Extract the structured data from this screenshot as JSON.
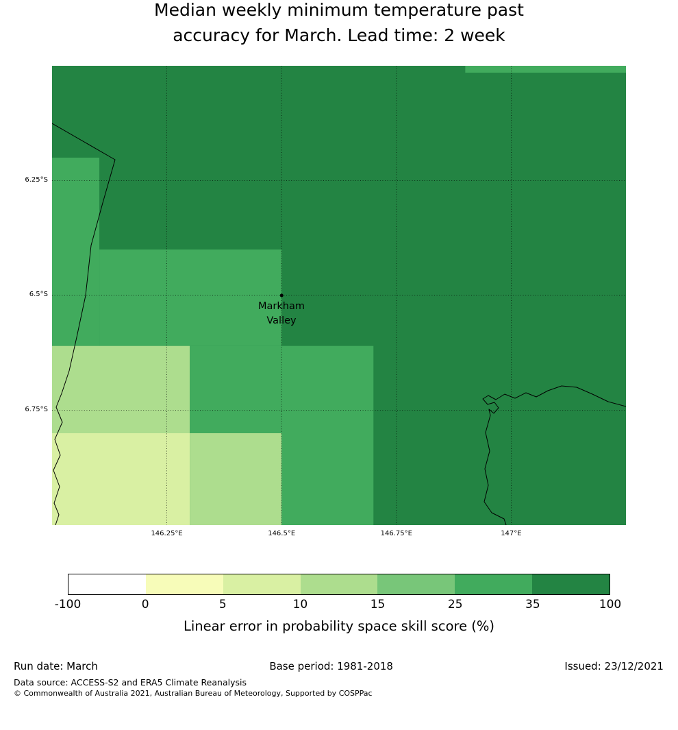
{
  "title": {
    "line1": "Median weekly minimum temperature past",
    "line2": "accuracy for March. Lead time: 2 week"
  },
  "map": {
    "marker": {
      "label_line1": "Markham",
      "label_line2": "Valley"
    },
    "lat_ticks": [
      {
        "label": "6.25°S",
        "lat": 6.25
      },
      {
        "label": "6.5°S",
        "lat": 6.5
      },
      {
        "label": "6.75°S",
        "lat": 6.75
      }
    ],
    "lon_ticks": [
      {
        "label": "146.25°E",
        "lon": 146.25
      },
      {
        "label": "146.5°E",
        "lon": 146.5
      },
      {
        "label": "146.75°E",
        "lon": 146.75
      },
      {
        "label": "147°E",
        "lon": 147.0
      }
    ]
  },
  "footer": {
    "run_date": "Run date: March",
    "base_period": "Base period: 1981-2018",
    "issued": "Issued: 23/12/2021",
    "data_source": "Data source: ACCESS-S2 and ERA5 Climate Reanalysis",
    "copyright": "© Commonwealth of Australia 2021, Australian Bureau of Meteorology, Supported by COSPPac"
  },
  "chart_data": {
    "type": "heatmap",
    "title": "Median weekly minimum temperature past accuracy for March. Lead time: 2 week",
    "colorbar_label": "Linear error in probability space skill score (%)",
    "lon_range": [
      146.0,
      147.25
    ],
    "lat_range": [
      6.0,
      7.0
    ],
    "bins": [
      -100,
      0,
      5,
      10,
      15,
      25,
      35,
      100
    ],
    "bin_colors": [
      "#ffffff",
      "#f7fcb9",
      "#d9f0a3",
      "#addd8e",
      "#78c679",
      "#41ab5d",
      "#238443"
    ],
    "background_bin": "35-100",
    "regions": [
      {
        "lon": [
          146.9,
          147.25
        ],
        "lat": [
          6.0,
          6.015
        ],
        "bin": "25-35"
      },
      {
        "lon": [
          146.0,
          146.103
        ],
        "lat": [
          6.2,
          6.61
        ],
        "bin": "25-35"
      },
      {
        "lon": [
          146.103,
          146.5
        ],
        "lat": [
          6.4,
          6.61
        ],
        "bin": "25-35"
      },
      {
        "lon": [
          146.0,
          146.3
        ],
        "lat": [
          6.61,
          6.8
        ],
        "bin": "10-15"
      },
      {
        "lon": [
          146.3,
          146.7
        ],
        "lat": [
          6.61,
          6.8
        ],
        "bin": "25-35"
      },
      {
        "lon": [
          146.0,
          146.3
        ],
        "lat": [
          6.8,
          7.0
        ],
        "bin": "5-10"
      },
      {
        "lon": [
          146.3,
          146.5
        ],
        "lat": [
          6.8,
          7.0
        ],
        "bin": "10-15"
      },
      {
        "lon": [
          146.5,
          146.7
        ],
        "lat": [
          6.8,
          7.0
        ],
        "bin": "25-35"
      }
    ],
    "marker": {
      "name": "Markham Valley",
      "lon": 146.5,
      "lat": 6.5
    }
  }
}
